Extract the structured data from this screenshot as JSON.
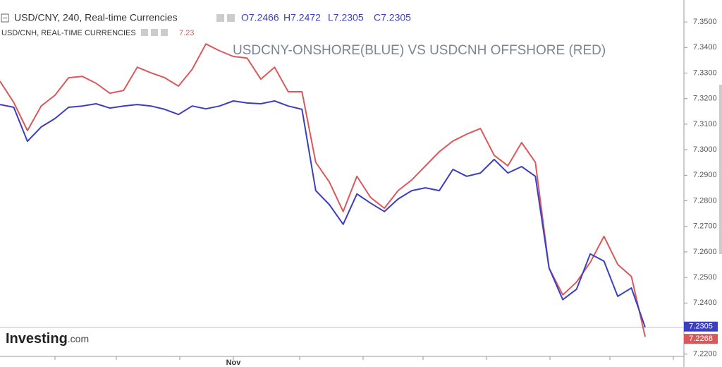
{
  "chart_data": {
    "type": "line",
    "title": "USDCNY-ONSHORE(BLUE) VS USDCNH OFFSHORE (RED)",
    "ohlc": [
      "O7.2466",
      "H7.2472",
      "L7.2305",
      "C7.2305"
    ],
    "logo": {
      "brand": "Investing",
      "suffix": ".com"
    },
    "categories": [
      null,
      null,
      null,
      null,
      null,
      null,
      null,
      null,
      null,
      null,
      null,
      null,
      null,
      null,
      null,
      null,
      null,
      "Nov",
      null,
      null,
      null,
      null,
      null,
      null,
      null,
      null,
      null,
      null,
      null,
      null,
      null,
      null,
      null,
      null,
      null,
      null,
      null,
      null,
      null,
      null,
      null,
      null,
      null,
      null,
      null,
      null,
      null,
      null
    ],
    "series": [
      {
        "name": "USD/CNY, 240, Real-time Currencies",
        "color": "#3b3fbf",
        "price_label": "7.2305",
        "values": [
          7.3177,
          7.3166,
          7.3033,
          7.3089,
          7.3122,
          7.3166,
          7.3171,
          7.318,
          7.3163,
          7.3171,
          7.3177,
          7.3171,
          7.3158,
          7.3138,
          7.3171,
          7.316,
          7.3171,
          7.3191,
          7.3183,
          7.318,
          7.3191,
          7.3171,
          7.3158,
          7.284,
          7.2785,
          7.2708,
          7.2827,
          7.2791,
          7.2758,
          7.2807,
          7.284,
          7.2851,
          7.284,
          7.2923,
          7.2896,
          7.2909,
          7.2962,
          7.2909,
          7.2934,
          7.2896,
          7.2537,
          7.2413,
          7.2454,
          7.2592,
          7.2564,
          7.2426,
          7.2459,
          7.2305
        ]
      },
      {
        "name": "USD/CNH, REAL-TIME CURRENCIES",
        "color": "#d9595b",
        "header_value": "7.23",
        "price_label": "7.2268",
        "values": [
          7.3268,
          7.3185,
          7.3075,
          7.3171,
          7.3213,
          7.3282,
          7.3287,
          7.326,
          7.3221,
          7.3232,
          7.3323,
          7.3301,
          7.3282,
          7.3249,
          7.3315,
          7.3414,
          7.3387,
          7.3365,
          7.3359,
          7.3276,
          7.3323,
          7.3227,
          7.3227,
          7.2951,
          7.2873,
          7.2758,
          7.2896,
          7.2813,
          7.2771,
          7.284,
          7.2882,
          7.2937,
          7.2992,
          7.3034,
          7.3061,
          7.3083,
          7.2978,
          7.2937,
          7.3028,
          7.2951,
          7.2537,
          7.2432,
          7.2482,
          7.2559,
          7.2661,
          7.2551,
          7.2504,
          7.2268
        ]
      }
    ],
    "ylim": [
      7.2191,
      7.3586
    ],
    "yticks": [
      {
        "value": 7.35,
        "label": "7.3500"
      },
      {
        "value": 7.34,
        "label": "7.3400"
      },
      {
        "value": 7.33,
        "label": "7.3300"
      },
      {
        "value": 7.32,
        "label": "7.3200"
      },
      {
        "value": 7.31,
        "label": "7.3100"
      },
      {
        "value": 7.3,
        "label": "7.3000"
      },
      {
        "value": 7.29,
        "label": "7.2900"
      },
      {
        "value": 7.28,
        "label": "7.2800"
      },
      {
        "value": 7.27,
        "label": "7.2700"
      },
      {
        "value": 7.26,
        "label": "7.2600"
      },
      {
        "value": 7.25,
        "label": "7.2500"
      },
      {
        "value": 7.24,
        "label": "7.2400"
      },
      {
        "value": 7.22,
        "label": "7.2200"
      }
    ],
    "grid": false
  }
}
